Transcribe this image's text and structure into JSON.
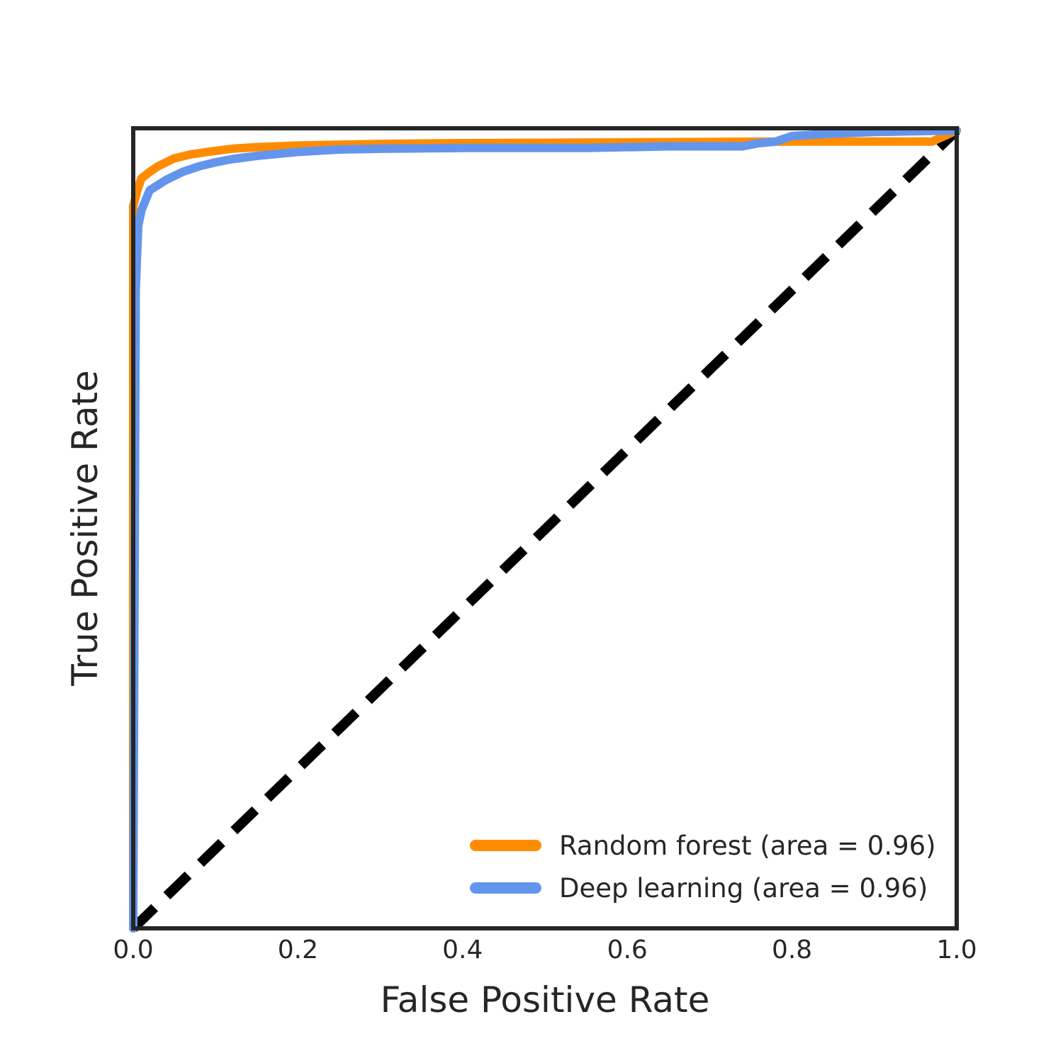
{
  "chart_data": {
    "type": "line",
    "xlabel": "False Positive Rate",
    "ylabel": "True Positive Rate",
    "xlim": [
      0.0,
      1.0
    ],
    "ylim": [
      0.0,
      1.0
    ],
    "xticks": [
      "0.0",
      "0.2",
      "0.4",
      "0.6",
      "0.8",
      "1.0"
    ],
    "grid": false,
    "legend_position": "lower-right",
    "series": [
      {
        "name": "Random forest (area = 0.96)",
        "color": "#ff8c00",
        "x": [
          0.0,
          0.0,
          0.005,
          0.01,
          0.02,
          0.03,
          0.04,
          0.05,
          0.07,
          0.09,
          0.12,
          0.15,
          0.2,
          0.3,
          0.4,
          0.6,
          0.8,
          0.97,
          0.985,
          1.0
        ],
        "y": [
          0.0,
          0.905,
          0.925,
          0.94,
          0.948,
          0.955,
          0.96,
          0.965,
          0.97,
          0.973,
          0.977,
          0.979,
          0.981,
          0.983,
          0.984,
          0.985,
          0.986,
          0.986,
          0.993,
          1.0
        ]
      },
      {
        "name": "Deep learning (area = 0.96)",
        "color": "#6495ed",
        "x": [
          0.0,
          0.003,
          0.006,
          0.01,
          0.02,
          0.04,
          0.06,
          0.08,
          0.1,
          0.12,
          0.15,
          0.2,
          0.25,
          0.3,
          0.4,
          0.55,
          0.65,
          0.74,
          0.76,
          0.78,
          0.8,
          0.85,
          0.9,
          1.0
        ],
        "y": [
          0.0,
          0.8,
          0.88,
          0.9,
          0.925,
          0.938,
          0.948,
          0.955,
          0.96,
          0.964,
          0.968,
          0.973,
          0.976,
          0.977,
          0.978,
          0.978,
          0.98,
          0.98,
          0.984,
          0.986,
          0.993,
          0.996,
          0.998,
          1.0
        ]
      }
    ],
    "reference_line": {
      "x": [
        0.0,
        1.0
      ],
      "y": [
        0.0,
        1.0
      ],
      "color": "#000000",
      "style": "dashed"
    }
  }
}
